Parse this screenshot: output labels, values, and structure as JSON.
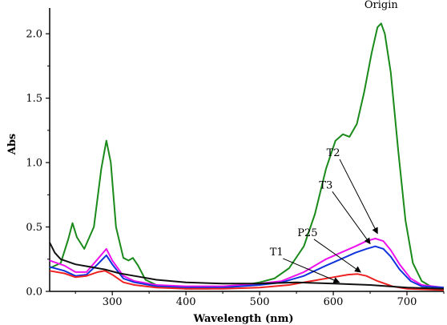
{
  "chart_data": {
    "type": "line",
    "title": "",
    "xlabel": "Wavelength (nm)",
    "ylabel": "Abs",
    "xlim": [
      215,
      750
    ],
    "ylim": [
      0,
      2.2
    ],
    "x_ticks": [
      300,
      400,
      500,
      600,
      700
    ],
    "y_ticks": [
      0.0,
      0.5,
      1.0,
      1.5,
      2.0
    ],
    "x_tick_labels": [
      "300",
      "400",
      "500",
      "600",
      "700"
    ],
    "y_tick_labels": [
      "0.0",
      "0.5",
      "1.0",
      "1.5",
      "2.0"
    ],
    "grid": false,
    "legend": "none",
    "series": [
      {
        "name": "Origin",
        "color": "#1a8a1a",
        "points": [
          [
            215,
            0.18
          ],
          [
            230,
            0.22
          ],
          [
            240,
            0.4
          ],
          [
            246,
            0.53
          ],
          [
            252,
            0.42
          ],
          [
            262,
            0.33
          ],
          [
            275,
            0.5
          ],
          [
            285,
            0.95
          ],
          [
            292,
            1.17
          ],
          [
            298,
            1.0
          ],
          [
            305,
            0.5
          ],
          [
            315,
            0.26
          ],
          [
            322,
            0.24
          ],
          [
            328,
            0.26
          ],
          [
            335,
            0.2
          ],
          [
            345,
            0.09
          ],
          [
            360,
            0.05
          ],
          [
            380,
            0.03
          ],
          [
            400,
            0.02
          ],
          [
            430,
            0.02
          ],
          [
            460,
            0.03
          ],
          [
            480,
            0.05
          ],
          [
            500,
            0.07
          ],
          [
            520,
            0.1
          ],
          [
            540,
            0.18
          ],
          [
            560,
            0.35
          ],
          [
            575,
            0.6
          ],
          [
            590,
            0.95
          ],
          [
            603,
            1.17
          ],
          [
            613,
            1.22
          ],
          [
            622,
            1.2
          ],
          [
            632,
            1.3
          ],
          [
            642,
            1.55
          ],
          [
            652,
            1.85
          ],
          [
            660,
            2.05
          ],
          [
            665,
            2.08
          ],
          [
            670,
            2.0
          ],
          [
            678,
            1.7
          ],
          [
            688,
            1.1
          ],
          [
            698,
            0.55
          ],
          [
            708,
            0.22
          ],
          [
            720,
            0.08
          ],
          [
            735,
            0.03
          ],
          [
            750,
            0.02
          ]
        ]
      },
      {
        "name": "T2",
        "color": "#ee11ee",
        "points": [
          [
            215,
            0.24
          ],
          [
            235,
            0.2
          ],
          [
            250,
            0.15
          ],
          [
            265,
            0.15
          ],
          [
            280,
            0.25
          ],
          [
            292,
            0.33
          ],
          [
            300,
            0.24
          ],
          [
            315,
            0.12
          ],
          [
            330,
            0.08
          ],
          [
            360,
            0.05
          ],
          [
            400,
            0.04
          ],
          [
            450,
            0.04
          ],
          [
            500,
            0.06
          ],
          [
            530,
            0.08
          ],
          [
            560,
            0.15
          ],
          [
            590,
            0.25
          ],
          [
            610,
            0.3
          ],
          [
            630,
            0.35
          ],
          [
            645,
            0.39
          ],
          [
            657,
            0.41
          ],
          [
            668,
            0.39
          ],
          [
            678,
            0.32
          ],
          [
            690,
            0.21
          ],
          [
            705,
            0.1
          ],
          [
            720,
            0.05
          ],
          [
            750,
            0.03
          ]
        ]
      },
      {
        "name": "T3",
        "color": "#1133dd",
        "points": [
          [
            215,
            0.19
          ],
          [
            235,
            0.16
          ],
          [
            250,
            0.12
          ],
          [
            265,
            0.13
          ],
          [
            280,
            0.21
          ],
          [
            292,
            0.28
          ],
          [
            300,
            0.21
          ],
          [
            315,
            0.1
          ],
          [
            330,
            0.07
          ],
          [
            360,
            0.04
          ],
          [
            400,
            0.03
          ],
          [
            450,
            0.03
          ],
          [
            500,
            0.05
          ],
          [
            530,
            0.07
          ],
          [
            560,
            0.12
          ],
          [
            590,
            0.2
          ],
          [
            610,
            0.25
          ],
          [
            630,
            0.3
          ],
          [
            645,
            0.33
          ],
          [
            657,
            0.35
          ],
          [
            668,
            0.33
          ],
          [
            678,
            0.27
          ],
          [
            690,
            0.17
          ],
          [
            705,
            0.08
          ],
          [
            720,
            0.04
          ],
          [
            750,
            0.03
          ]
        ]
      },
      {
        "name": "P25",
        "color": "#ee2222",
        "points": [
          [
            215,
            0.16
          ],
          [
            235,
            0.14
          ],
          [
            250,
            0.11
          ],
          [
            265,
            0.12
          ],
          [
            280,
            0.15
          ],
          [
            290,
            0.16
          ],
          [
            300,
            0.13
          ],
          [
            315,
            0.07
          ],
          [
            330,
            0.05
          ],
          [
            360,
            0.03
          ],
          [
            400,
            0.02
          ],
          [
            450,
            0.02
          ],
          [
            500,
            0.03
          ],
          [
            540,
            0.05
          ],
          [
            570,
            0.08
          ],
          [
            600,
            0.11
          ],
          [
            620,
            0.13
          ],
          [
            633,
            0.135
          ],
          [
            645,
            0.12
          ],
          [
            660,
            0.08
          ],
          [
            680,
            0.04
          ],
          [
            700,
            0.02
          ],
          [
            750,
            0.01
          ]
        ]
      },
      {
        "name": "T1",
        "color": "#111111",
        "points": [
          [
            215,
            0.38
          ],
          [
            222,
            0.3
          ],
          [
            230,
            0.25
          ],
          [
            250,
            0.21
          ],
          [
            270,
            0.19
          ],
          [
            290,
            0.17
          ],
          [
            310,
            0.14
          ],
          [
            330,
            0.12
          ],
          [
            360,
            0.09
          ],
          [
            400,
            0.07
          ],
          [
            450,
            0.06
          ],
          [
            500,
            0.06
          ],
          [
            550,
            0.07
          ],
          [
            600,
            0.06
          ],
          [
            650,
            0.05
          ],
          [
            700,
            0.03
          ],
          [
            750,
            0.02
          ]
        ]
      }
    ],
    "annotations": [
      {
        "text": "Origin",
        "x": 665,
        "y": 2.2
      },
      {
        "text": "T2",
        "x": 600,
        "y": 1.05,
        "arrow_to": [
          660,
          0.45
        ]
      },
      {
        "text": "T3",
        "x": 590,
        "y": 0.8,
        "arrow_to": [
          650,
          0.37
        ]
      },
      {
        "text": "P25",
        "x": 565,
        "y": 0.43,
        "arrow_to": [
          637,
          0.15
        ]
      },
      {
        "text": "T1",
        "x": 523,
        "y": 0.28,
        "arrow_to": [
          608,
          0.07
        ]
      }
    ]
  }
}
